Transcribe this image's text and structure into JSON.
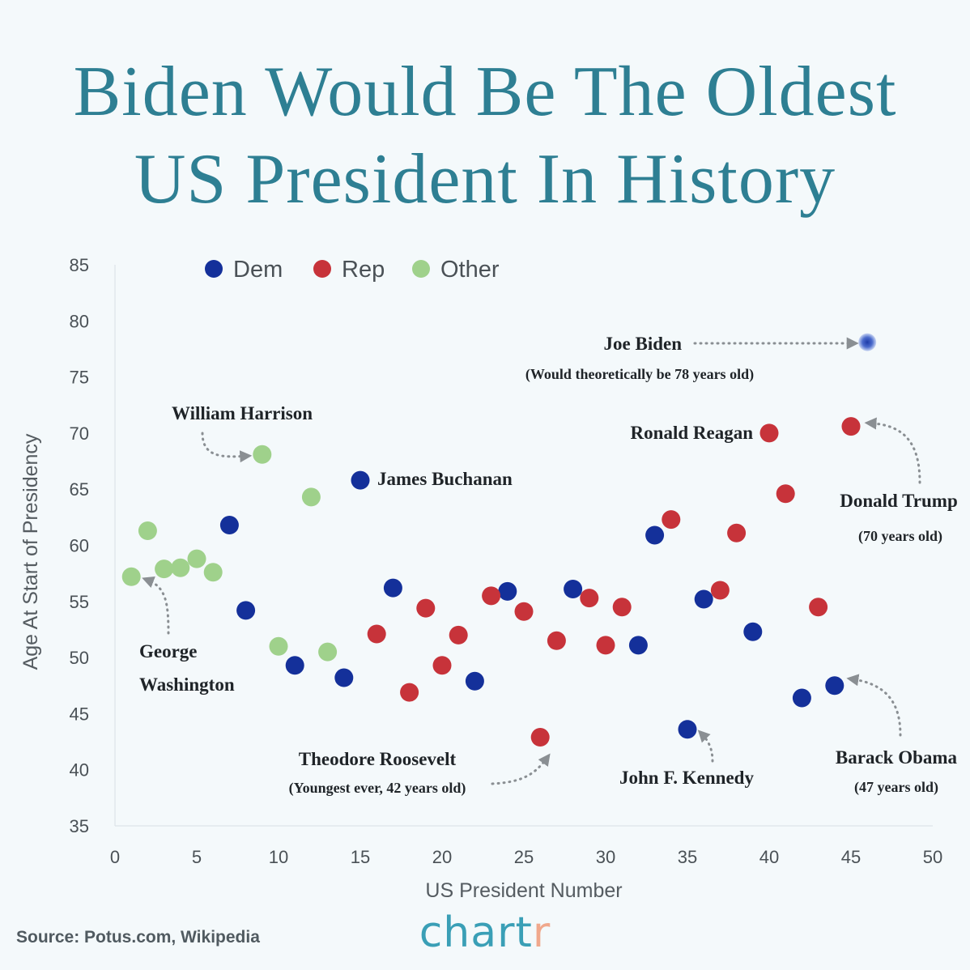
{
  "title": {
    "line1": "Biden Would Be The Oldest",
    "line2": "US President In History"
  },
  "source": "Source: Potus.com, Wikipedia",
  "brand": {
    "main": "chart",
    "accent": "r"
  },
  "colors": {
    "Dem": "#14309a",
    "Rep": "#c7333a",
    "Other": "#9fd18b",
    "title": "#2e7f93",
    "arrow": "#8a8f93"
  },
  "chart_data": {
    "type": "scatter",
    "xlabel": "US President Number",
    "ylabel": "Age At Start of Presidency",
    "xlim": [
      0,
      50
    ],
    "ylim": [
      35,
      85
    ],
    "xticks": [
      0,
      5,
      10,
      15,
      20,
      25,
      30,
      35,
      40,
      45,
      50
    ],
    "yticks": [
      35,
      40,
      45,
      50,
      55,
      60,
      65,
      70,
      75,
      80,
      85
    ],
    "grid": false,
    "legend": {
      "placement": "top-left",
      "entries": [
        "Dem",
        "Rep",
        "Other"
      ]
    },
    "series": [
      {
        "name": "Dem",
        "points": [
          [
            7,
            61.8
          ],
          [
            8,
            54.2
          ],
          [
            11,
            49.3
          ],
          [
            14,
            48.2
          ],
          [
            15,
            65.8
          ],
          [
            17,
            56.2
          ],
          [
            22,
            47.9
          ],
          [
            24,
            55.9
          ],
          [
            28,
            56.1
          ],
          [
            32,
            51.1
          ],
          [
            33,
            60.9
          ],
          [
            35,
            43.6
          ],
          [
            36,
            55.2
          ],
          [
            39,
            52.3
          ],
          [
            42,
            46.4
          ],
          [
            44,
            47.5
          ]
        ]
      },
      {
        "name": "Rep",
        "points": [
          [
            16,
            52.1
          ],
          [
            18,
            46.9
          ],
          [
            19,
            54.4
          ],
          [
            20,
            49.3
          ],
          [
            21,
            52
          ],
          [
            23,
            55.5
          ],
          [
            25,
            54.1
          ],
          [
            26,
            42.9
          ],
          [
            27,
            51.5
          ],
          [
            29,
            55.3
          ],
          [
            30,
            51.1
          ],
          [
            31,
            54.5
          ],
          [
            34,
            62.3
          ],
          [
            37,
            56
          ],
          [
            38,
            61.1
          ],
          [
            40,
            70
          ],
          [
            41,
            64.6
          ],
          [
            43,
            54.5
          ],
          [
            45,
            70.6
          ]
        ]
      },
      {
        "name": "Other",
        "points": [
          [
            1,
            57.2
          ],
          [
            2,
            61.3
          ],
          [
            3,
            57.9
          ],
          [
            4,
            58
          ],
          [
            5,
            58.8
          ],
          [
            6,
            57.6
          ],
          [
            9,
            68.1
          ],
          [
            10,
            51
          ],
          [
            12,
            64.3
          ],
          [
            13,
            50.5
          ]
        ]
      },
      {
        "name": "Joe Biden",
        "points": [
          [
            46,
            78.1
          ]
        ]
      }
    ],
    "annotations": [
      {
        "text": "Joe Biden",
        "sub": "(Would theoretically be 78 years old)",
        "point": [
          46,
          78.1
        ]
      },
      {
        "text": "William Harrison",
        "point": [
          9,
          68.1
        ]
      },
      {
        "text": "James Buchanan",
        "point": [
          15,
          65.8
        ]
      },
      {
        "text": "Ronald Reagan",
        "point": [
          40,
          70
        ]
      },
      {
        "text": "Donald Trump",
        "sub": "(70 years old)",
        "point": [
          45,
          70.6
        ]
      },
      {
        "text": "George",
        "text2": "Washington",
        "point": [
          1,
          57.2
        ]
      },
      {
        "text": "Theodore Roosevelt",
        "sub": "(Youngest ever, 42 years old)",
        "point": [
          26,
          42.9
        ]
      },
      {
        "text": "John F. Kennedy",
        "point": [
          35,
          43.6
        ]
      },
      {
        "text": "Barack Obama",
        "sub": "(47 years old)",
        "point": [
          44,
          47.5
        ]
      }
    ]
  }
}
